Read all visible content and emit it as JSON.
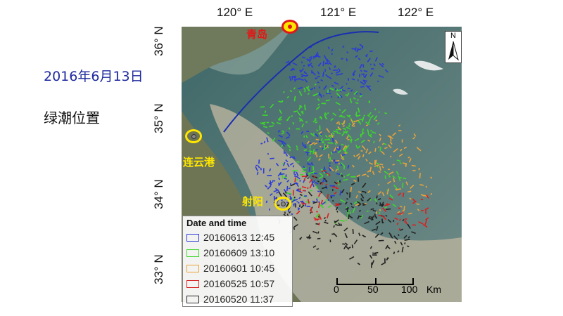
{
  "date_label": "2016年6月13日",
  "caption": "绿潮位置",
  "axes": {
    "lon_ticks": [
      "120° E",
      "121° E",
      "122° E"
    ],
    "lat_ticks": [
      "36° N",
      "35° N",
      "34° N",
      "33° N"
    ]
  },
  "places": {
    "qingdao": "青岛",
    "lianyungang": "连云港",
    "sheyang": "射阳"
  },
  "legend": {
    "title": "Date and time",
    "items": [
      {
        "label": "20160613 12:45",
        "color": "#2b3bd6"
      },
      {
        "label": "20160609 13:10",
        "color": "#3ed62b"
      },
      {
        "label": "20160601 10:45",
        "color": "#e8a23a"
      },
      {
        "label": "20160525 10:57",
        "color": "#d82020"
      },
      {
        "label": "20160520 11:37",
        "color": "#222222"
      }
    ]
  },
  "north_label": "N",
  "scale": {
    "ticks": [
      "0",
      "50",
      "100"
    ],
    "unit": "Km"
  },
  "colors": {
    "sea": "#4a6f70",
    "turbid": "#b8b5a2",
    "land": "#6f7858",
    "boundary_line": "#1a2fb0"
  }
}
